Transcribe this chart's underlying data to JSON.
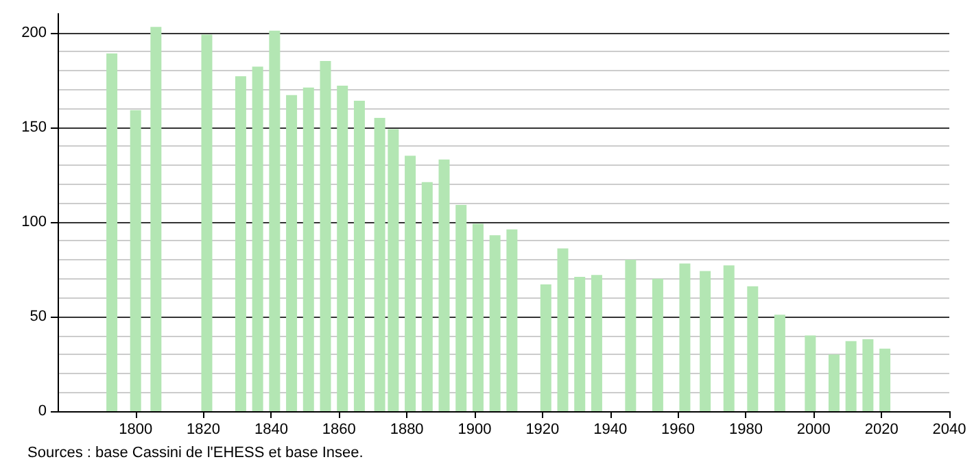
{
  "chart_data": {
    "type": "bar",
    "x": [
      1793,
      1800,
      1806,
      1821,
      1831,
      1836,
      1841,
      1846,
      1851,
      1856,
      1861,
      1866,
      1872,
      1876,
      1881,
      1886,
      1891,
      1896,
      1901,
      1906,
      1911,
      1921,
      1926,
      1931,
      1936,
      1946,
      1954,
      1962,
      1968,
      1975,
      1982,
      1990,
      1999,
      2006,
      2011,
      2016,
      2021
    ],
    "values": [
      189,
      159,
      203,
      199,
      177,
      182,
      201,
      167,
      171,
      185,
      172,
      164,
      155,
      149,
      135,
      121,
      133,
      109,
      99,
      93,
      96,
      67,
      86,
      71,
      72,
      80,
      70,
      78,
      74,
      77,
      66,
      51,
      40,
      30,
      37,
      38,
      33
    ],
    "color": "#b3e6b3",
    "xlim": [
      1777,
      2040
    ],
    "xticks": [
      1800,
      1820,
      1840,
      1860,
      1880,
      1900,
      1920,
      1940,
      1960,
      1980,
      2000,
      2020,
      2040
    ],
    "ylim": [
      0,
      210
    ],
    "yticks": [
      0,
      50,
      100,
      150,
      200
    ],
    "grid": "y",
    "annotations": [
      "Sources : base Cassini de l'EHESS et base Insee."
    ]
  }
}
